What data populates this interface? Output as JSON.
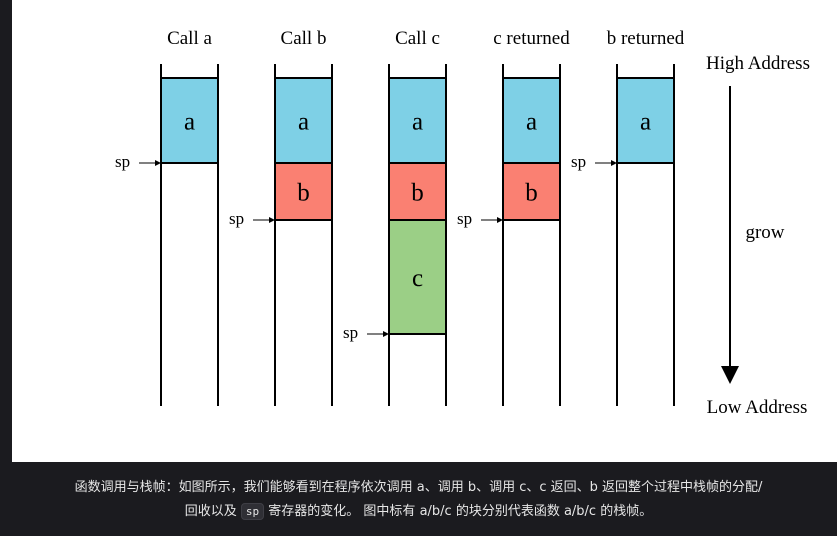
{
  "diagram": {
    "columns": [
      {
        "title": "Call a",
        "frames": [
          "a"
        ],
        "sp_label": "sp"
      },
      {
        "title": "Call b",
        "frames": [
          "a",
          "b"
        ],
        "sp_label": "sp"
      },
      {
        "title": "Call c",
        "frames": [
          "a",
          "b",
          "c"
        ],
        "sp_label": "sp"
      },
      {
        "title": "c returned",
        "frames": [
          "a",
          "b"
        ],
        "sp_label": "sp"
      },
      {
        "title": "b returned",
        "frames": [
          "a"
        ],
        "sp_label": "sp"
      }
    ],
    "frame_colors": {
      "a": "#7ed0e6",
      "b": "#fa8072",
      "c": "#9bcf86"
    },
    "high_address_label": "High Address",
    "low_address_label": "Low Address",
    "grow_label": "grow"
  },
  "caption": {
    "line1": "函数调用与栈帧：如图所示，我们能够看到在程序依次调用 a、调用 b、调用 c、c 返回、b 返回整个过程中栈帧的分配/",
    "line2_before": "回收以及 ",
    "line2_code": "sp",
    "line2_after": " 寄存器的变化。 图中标有 a/b/c 的块分别代表函数 a/b/c 的栈帧。"
  }
}
